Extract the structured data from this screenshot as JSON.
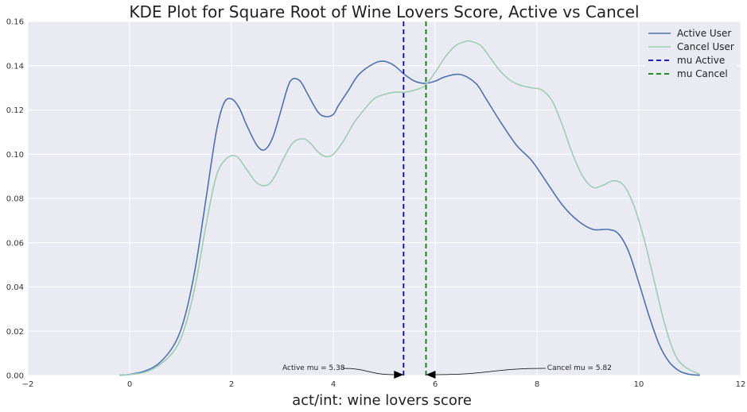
{
  "chart_data": {
    "type": "line",
    "title": "KDE Plot for Square Root of Wine Lovers Score, Active vs Cancel",
    "xlabel": "act/int: wine lovers score",
    "ylabel": "",
    "xlim": [
      -2,
      12
    ],
    "ylim": [
      0,
      0.16
    ],
    "xticks": [
      -2,
      0,
      2,
      4,
      6,
      8,
      10,
      12
    ],
    "yticks": [
      0.0,
      0.02,
      0.04,
      0.06,
      0.08,
      0.1,
      0.12,
      0.14,
      0.16
    ],
    "xtick_labels": [
      "−2",
      "0",
      "2",
      "4",
      "6",
      "8",
      "10",
      "12"
    ],
    "ytick_labels": [
      "0.00",
      "0.02",
      "0.04",
      "0.06",
      "0.08",
      "0.10",
      "0.12",
      "0.14",
      "0.16"
    ],
    "grid": true,
    "legend_position": "top-right",
    "background": "#eaeaf2",
    "series": [
      {
        "name": "Active User",
        "color": "#4c72b0",
        "x": [
          -0.2,
          0.0,
          0.3,
          0.6,
          0.9,
          1.1,
          1.3,
          1.5,
          1.7,
          1.85,
          2.0,
          2.15,
          2.3,
          2.5,
          2.65,
          2.8,
          2.95,
          3.1,
          3.2,
          3.35,
          3.5,
          3.7,
          3.85,
          4.0,
          4.1,
          4.3,
          4.5,
          4.8,
          5.0,
          5.2,
          5.4,
          5.6,
          5.8,
          6.0,
          6.2,
          6.5,
          6.8,
          7.0,
          7.3,
          7.6,
          7.9,
          8.2,
          8.5,
          8.8,
          9.1,
          9.4,
          9.6,
          9.8,
          10.0,
          10.2,
          10.4,
          10.6,
          10.8,
          11.0,
          11.2
        ],
        "y": [
          0.0001,
          0.0005,
          0.002,
          0.006,
          0.015,
          0.028,
          0.05,
          0.08,
          0.11,
          0.123,
          0.125,
          0.121,
          0.113,
          0.104,
          0.102,
          0.107,
          0.118,
          0.13,
          0.134,
          0.133,
          0.127,
          0.119,
          0.117,
          0.118,
          0.122,
          0.129,
          0.136,
          0.141,
          0.142,
          0.14,
          0.136,
          0.133,
          0.132,
          0.133,
          0.135,
          0.136,
          0.132,
          0.125,
          0.114,
          0.104,
          0.097,
          0.087,
          0.077,
          0.07,
          0.066,
          0.066,
          0.064,
          0.056,
          0.042,
          0.027,
          0.014,
          0.006,
          0.002,
          0.0005,
          0.0001
        ]
      },
      {
        "name": "Cancel User",
        "color": "#9ecdb3",
        "x": [
          -0.2,
          0.0,
          0.3,
          0.6,
          0.9,
          1.1,
          1.3,
          1.5,
          1.7,
          1.9,
          2.1,
          2.3,
          2.5,
          2.7,
          2.85,
          3.0,
          3.2,
          3.4,
          3.55,
          3.7,
          3.85,
          4.0,
          4.2,
          4.4,
          4.6,
          4.8,
          5.0,
          5.2,
          5.4,
          5.6,
          5.8,
          6.0,
          6.2,
          6.4,
          6.6,
          6.7,
          6.9,
          7.1,
          7.3,
          7.5,
          7.7,
          7.9,
          8.1,
          8.3,
          8.5,
          8.7,
          8.9,
          9.1,
          9.3,
          9.5,
          9.7,
          9.9,
          10.1,
          10.3,
          10.5,
          10.7,
          10.9,
          11.2
        ],
        "y": [
          0.0001,
          0.0004,
          0.0015,
          0.005,
          0.012,
          0.023,
          0.042,
          0.068,
          0.09,
          0.098,
          0.099,
          0.093,
          0.087,
          0.086,
          0.09,
          0.097,
          0.105,
          0.107,
          0.105,
          0.101,
          0.099,
          0.1,
          0.106,
          0.114,
          0.12,
          0.125,
          0.127,
          0.128,
          0.128,
          0.129,
          0.131,
          0.137,
          0.144,
          0.149,
          0.151,
          0.151,
          0.149,
          0.143,
          0.137,
          0.133,
          0.131,
          0.13,
          0.129,
          0.124,
          0.113,
          0.1,
          0.09,
          0.085,
          0.086,
          0.088,
          0.086,
          0.077,
          0.062,
          0.043,
          0.024,
          0.01,
          0.004,
          0.0005
        ]
      }
    ],
    "vlines": [
      {
        "name": "mu Active",
        "x": 5.38,
        "color": "#0000cc"
      },
      {
        "name": "mu Cancel",
        "x": 5.82,
        "color": "#008000"
      }
    ],
    "annotations": [
      {
        "text": "Active mu = 5.38",
        "target_x": 5.38,
        "target_y": 0.0,
        "text_x": 3.0,
        "text_y": 0.0025
      },
      {
        "text": "Cancel mu = 5.82",
        "target_x": 5.82,
        "target_y": 0.0,
        "text_x": 8.2,
        "text_y": 0.0025
      }
    ]
  }
}
